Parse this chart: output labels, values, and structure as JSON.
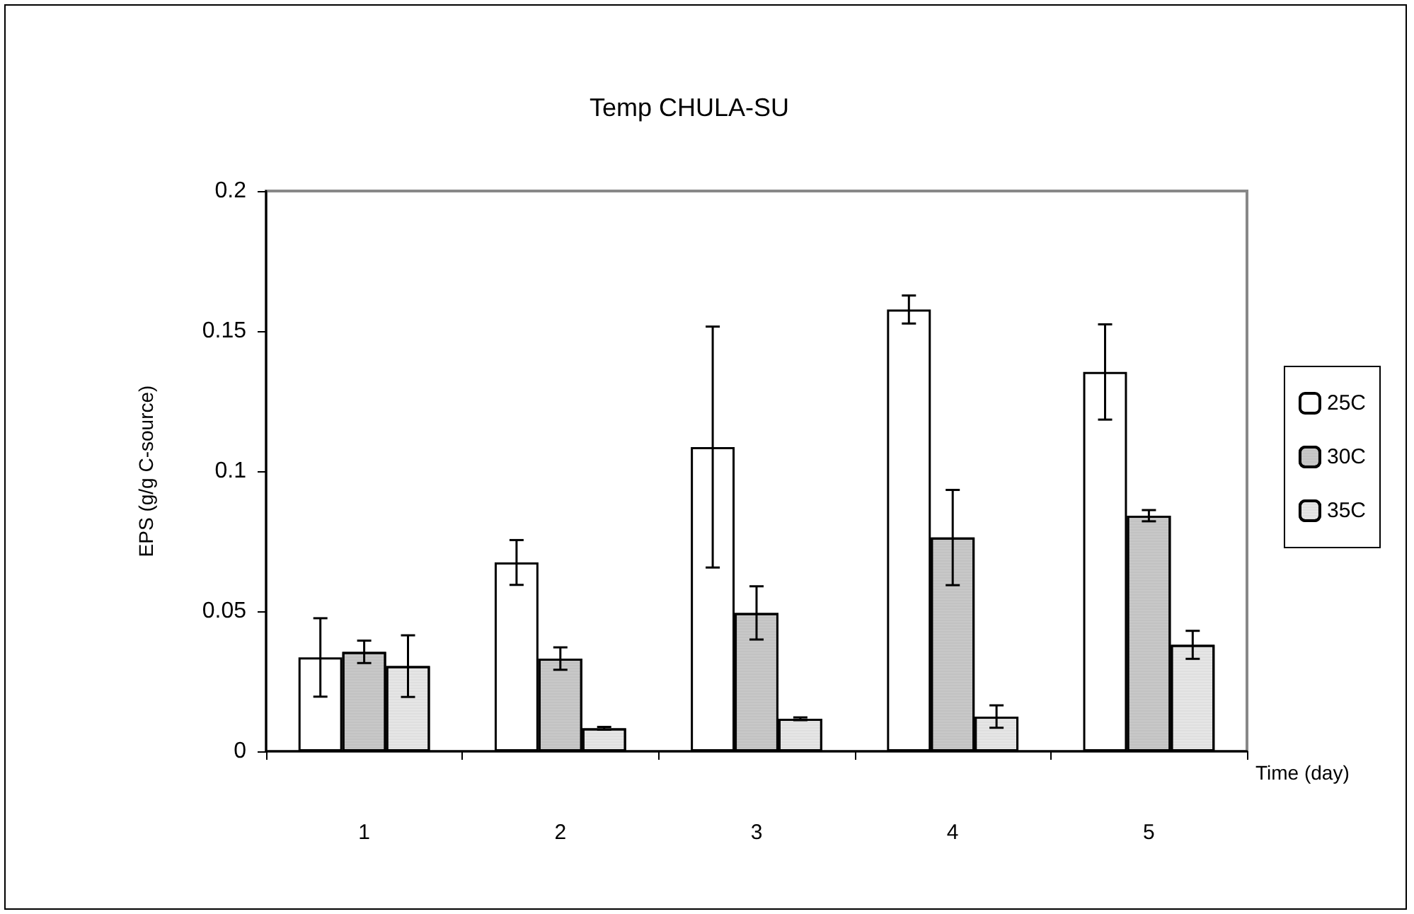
{
  "chart_data": {
    "type": "bar",
    "title": "Temp CHULA-SU",
    "xlabel": "Time (day)",
    "ylabel": "EPS (g/g C-source)",
    "categories": [
      "1",
      "2",
      "3",
      "4",
      "5"
    ],
    "series": [
      {
        "name": "25C",
        "color": "#ffffff",
        "values": [
          0.0335,
          0.0674,
          0.1086,
          0.1577,
          0.1354
        ],
        "errors": [
          0.014,
          0.008,
          0.043,
          0.005,
          0.017
        ]
      },
      {
        "name": "30C",
        "color": "#c8c8c8",
        "values": [
          0.0355,
          0.0331,
          0.0494,
          0.0763,
          0.0841
        ],
        "errors": [
          0.004,
          0.004,
          0.0095,
          0.017,
          0.002
        ]
      },
      {
        "name": "35C",
        "color": "#e6e6e6",
        "values": [
          0.0304,
          0.0082,
          0.0116,
          0.0124,
          0.038
        ],
        "errors": [
          0.011,
          0.0005,
          0.0005,
          0.004,
          0.005
        ]
      }
    ],
    "ylim": [
      0,
      0.2
    ],
    "yticks": [
      0,
      0.05,
      0.1,
      0.15,
      0.2
    ],
    "grid": false,
    "legend": "right"
  }
}
